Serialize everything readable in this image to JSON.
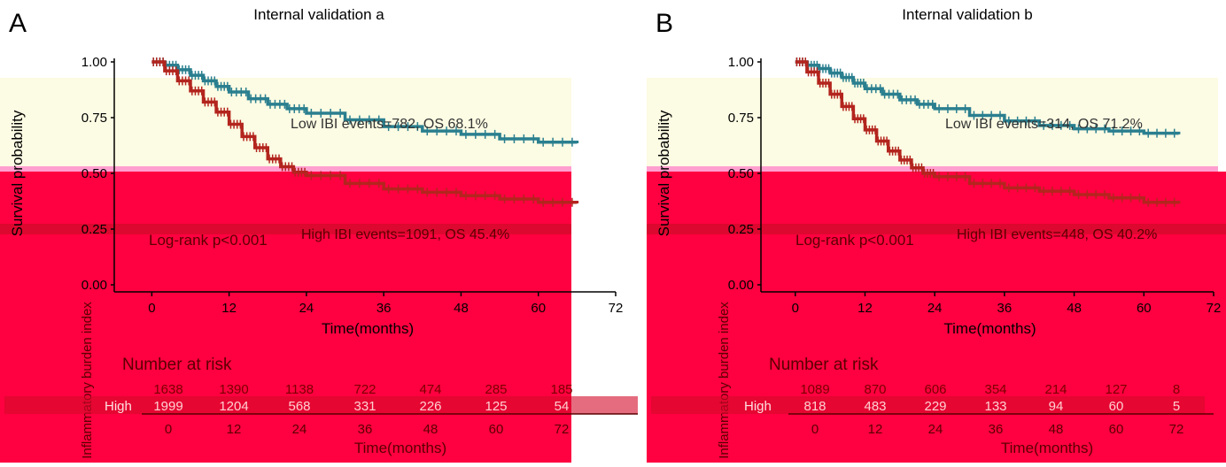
{
  "colors": {
    "low": "#2a7f8f",
    "low_dark": "#1f5a73",
    "high": "#b3251e",
    "high_dark": "#8e1010",
    "band_yellow": "#fcfbe3",
    "band_red": "#ff0040",
    "band_red_dark": "#d40a2a",
    "pink_line": "#ff9fd0"
  },
  "chart_data": [
    {
      "panel": "A",
      "type": "line",
      "subtype": "kaplan-meier",
      "title": "Internal validation a",
      "xlabel": "Time(months)",
      "ylabel": "Survival probability",
      "xlim": [
        -5,
        72
      ],
      "ylim": [
        0,
        1
      ],
      "x_ticks": [
        0,
        12,
        24,
        36,
        48,
        60,
        72
      ],
      "y_ticks": [
        "0.00",
        "0.25",
        "0.50",
        "0.75",
        "1.00"
      ],
      "series": [
        {
          "name": "Low",
          "color": "#2a7f8f",
          "x": [
            0,
            2,
            4,
            6,
            8,
            10,
            12,
            15,
            18,
            21,
            24,
            30,
            36,
            42,
            48,
            54,
            60,
            66
          ],
          "y": [
            1,
            0.985,
            0.965,
            0.94,
            0.915,
            0.89,
            0.865,
            0.835,
            0.81,
            0.79,
            0.77,
            0.74,
            0.71,
            0.69,
            0.675,
            0.655,
            0.64,
            0.635
          ]
        },
        {
          "name": "High",
          "color": "#b3251e",
          "x": [
            0,
            2,
            4,
            6,
            8,
            10,
            12,
            14,
            16,
            18,
            20,
            22,
            24,
            30,
            36,
            42,
            48,
            54,
            60,
            66
          ],
          "y": [
            1,
            0.96,
            0.915,
            0.87,
            0.82,
            0.775,
            0.72,
            0.665,
            0.615,
            0.565,
            0.53,
            0.505,
            0.49,
            0.455,
            0.43,
            0.415,
            0.4,
            0.385,
            0.37,
            0.365
          ]
        }
      ],
      "annotations": {
        "low": "Low IBI events=782, OS 68.1%",
        "high": "High IBI events=1091, OS 45.4%",
        "logrank": "Log-rank p<0.001"
      },
      "risk_table": {
        "title": "Number at risk",
        "ylabel": "Inflammatory burden index",
        "low_row": [
          "1638",
          "1390",
          "1138",
          "722",
          "474",
          "285",
          "185"
        ],
        "high_label": "High",
        "high_row": [
          "1999",
          "1204",
          "568",
          "331",
          "226",
          "125",
          "54"
        ],
        "xlabel": "Time(months)"
      }
    },
    {
      "panel": "B",
      "type": "line",
      "subtype": "kaplan-meier",
      "title": "Internal validation b",
      "xlabel": "Time(months)",
      "ylabel": "Survival probability",
      "xlim": [
        -5,
        72
      ],
      "ylim": [
        0,
        1
      ],
      "x_ticks": [
        0,
        12,
        24,
        36,
        48,
        60,
        72
      ],
      "y_ticks": [
        "0.00",
        "0.25",
        "0.50",
        "0.75",
        "1.00"
      ],
      "series": [
        {
          "name": "Low",
          "color": "#2a7f8f",
          "x": [
            0,
            2,
            4,
            6,
            8,
            10,
            12,
            15,
            18,
            21,
            24,
            30,
            36,
            42,
            48,
            54,
            60,
            66
          ],
          "y": [
            1,
            0.985,
            0.97,
            0.95,
            0.93,
            0.905,
            0.88,
            0.855,
            0.83,
            0.81,
            0.79,
            0.76,
            0.735,
            0.715,
            0.7,
            0.69,
            0.68,
            0.675
          ]
        },
        {
          "name": "High",
          "color": "#b3251e",
          "x": [
            0,
            2,
            4,
            6,
            8,
            10,
            12,
            14,
            16,
            18,
            20,
            22,
            24,
            30,
            36,
            42,
            48,
            54,
            60,
            66
          ],
          "y": [
            1,
            0.955,
            0.905,
            0.855,
            0.8,
            0.745,
            0.695,
            0.645,
            0.6,
            0.56,
            0.525,
            0.5,
            0.485,
            0.455,
            0.435,
            0.42,
            0.405,
            0.39,
            0.37,
            0.365
          ]
        }
      ],
      "annotations": {
        "low": "Low IBI events=314, OS 71.2%",
        "high": "High IBI events=448, OS 40.2%",
        "logrank": "Log-rank p<0.001"
      },
      "risk_table": {
        "title": "Number at risk",
        "ylabel": "Inflammatory burden index",
        "low_row": [
          "1089",
          "870",
          "606",
          "354",
          "214",
          "127",
          "8"
        ],
        "high_label": "High",
        "high_row": [
          "818",
          "483",
          "229",
          "133",
          "94",
          "60",
          "5"
        ],
        "xlabel": "Time(months)"
      }
    }
  ]
}
